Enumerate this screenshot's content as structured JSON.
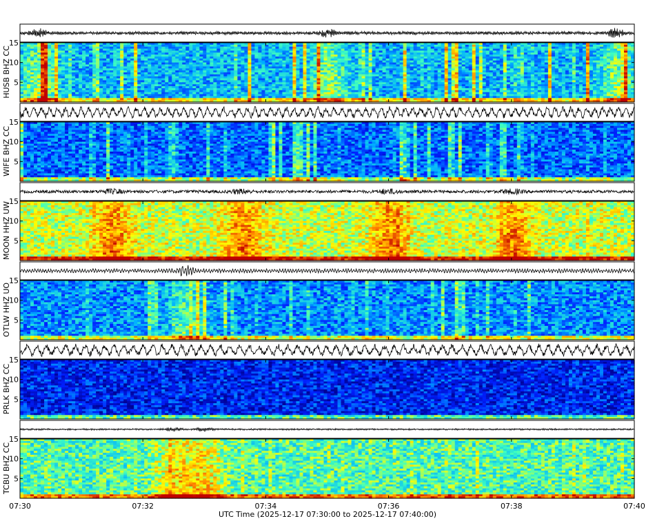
{
  "chart_data": {
    "type": "heatmap",
    "xlabel": "UTC Time (2025-12-17 07:30:00 to 2025-12-17 07:40:00)",
    "x_ticks": [
      "07:30",
      "07:32",
      "07:34",
      "07:36",
      "07:38",
      "07:40"
    ],
    "y_ticks": [
      "5",
      "10",
      "15"
    ],
    "ylim": [
      0,
      15
    ],
    "colormap": [
      "#00008f",
      "#0020ff",
      "#00b0ff",
      "#40ffbf",
      "#ffff00",
      "#ff8000",
      "#c00000"
    ],
    "trace_color": "#000000",
    "stations": [
      {
        "label": "HUSB BHZ CC",
        "base_level": 0.35,
        "vertical_streaks": 0.45,
        "amplitude": 0.25,
        "period": 3,
        "bursts": [
          0.03,
          0.5,
          0.97
        ]
      },
      {
        "label": "WIFE BHZ CC",
        "base_level": 0.25,
        "vertical_streaks": 0.3,
        "amplitude": 0.8,
        "period": 18,
        "bursts": []
      },
      {
        "label": "MOON HHZ UW",
        "base_level": 0.62,
        "vertical_streaks": 0.05,
        "amplitude": 0.5,
        "period": 2,
        "bursts": [
          0.15,
          0.36,
          0.6,
          0.8
        ]
      },
      {
        "label": "OTLW HHZ UO",
        "base_level": 0.3,
        "vertical_streaks": 0.25,
        "amplitude": 0.3,
        "period": 6,
        "bursts": [
          0.27
        ]
      },
      {
        "label": "PRLK BHZ CC",
        "base_level": 0.15,
        "vertical_streaks": 0.02,
        "amplitude": 0.85,
        "period": 22,
        "bursts": []
      },
      {
        "label": "TCBU BHZ CC",
        "base_level": 0.5,
        "vertical_streaks": 0.1,
        "amplitude": 0.12,
        "period": 3,
        "bursts": [
          0.25,
          0.3
        ]
      }
    ]
  }
}
